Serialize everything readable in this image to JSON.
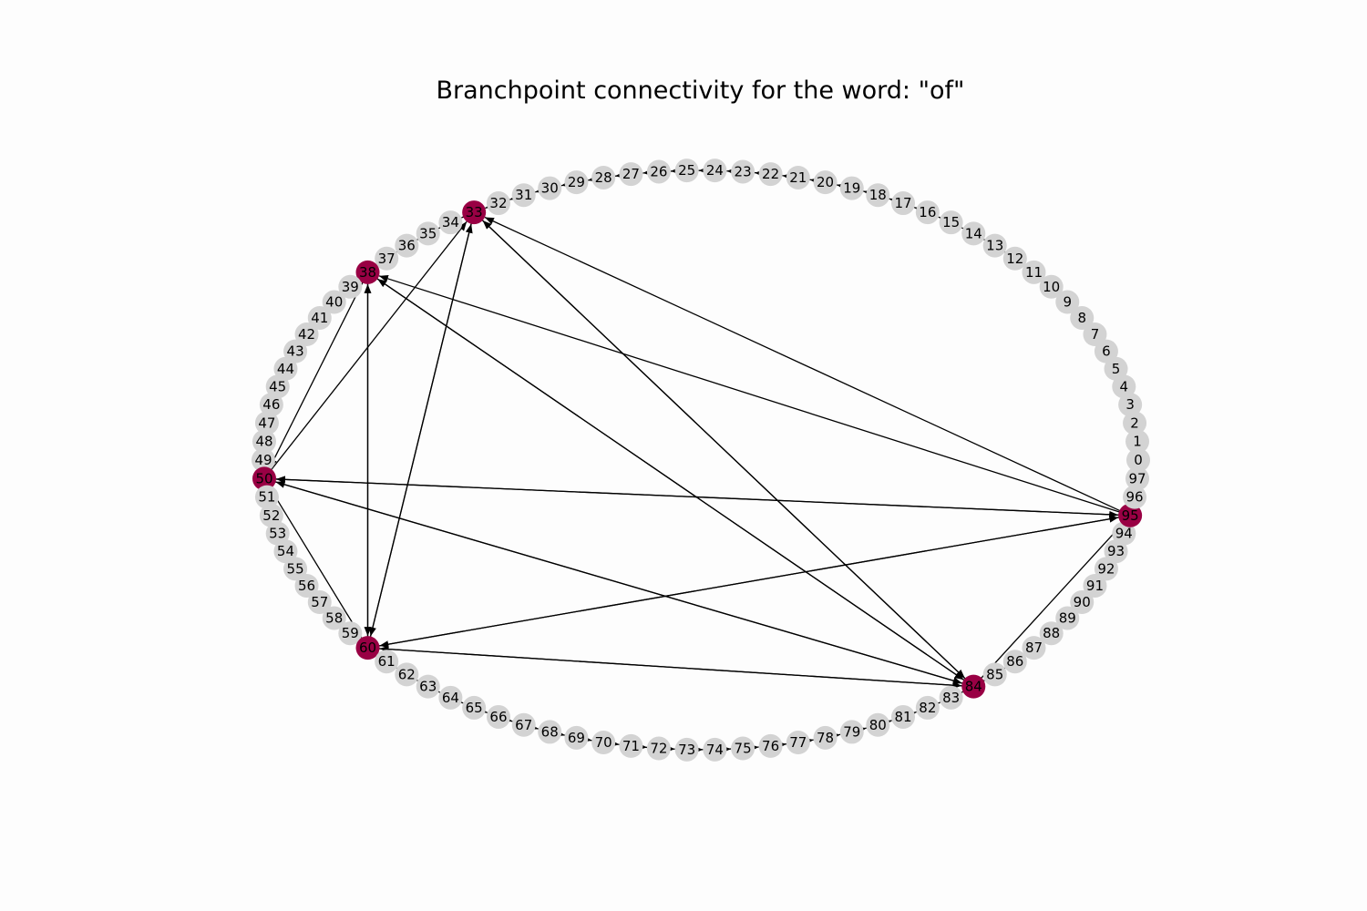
{
  "title": "Branchpoint connectivity for the word: \"of\"",
  "colors": {
    "node": "#d3d3d3",
    "branchpoint": "#990044",
    "edge": "#000000"
  },
  "node_count": 98,
  "branchpoints": [
    33,
    38,
    50,
    60,
    84,
    95
  ],
  "edges": [
    [
      95,
      33
    ],
    [
      84,
      33
    ],
    [
      50,
      33
    ],
    [
      60,
      33
    ],
    [
      95,
      38
    ],
    [
      84,
      38
    ],
    [
      60,
      38
    ],
    [
      38,
      50
    ],
    [
      95,
      50
    ],
    [
      84,
      50
    ],
    [
      60,
      50
    ],
    [
      33,
      60
    ],
    [
      38,
      60
    ],
    [
      95,
      60
    ],
    [
      84,
      60
    ],
    [
      50,
      95
    ],
    [
      60,
      95
    ],
    [
      84,
      95
    ],
    [
      33,
      84
    ],
    [
      38,
      84
    ],
    [
      50,
      84
    ],
    [
      60,
      84
    ]
  ]
}
